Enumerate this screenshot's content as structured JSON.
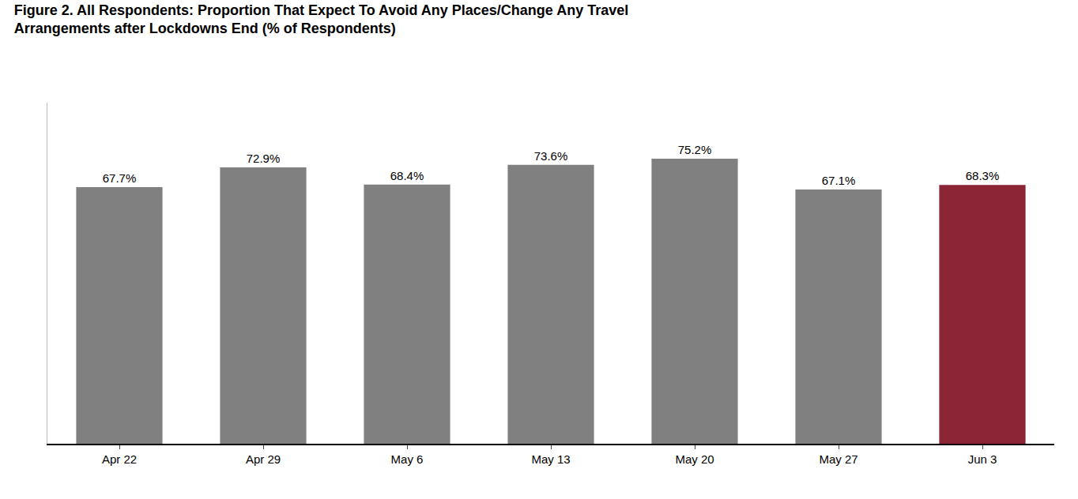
{
  "chart_data": {
    "type": "bar",
    "title": "Figure 2. All Respondents: Proportion That Expect To Avoid Any Places/Change Any Travel\nArrangements after Lockdowns End (% of Respondents)",
    "categories": [
      "Apr 22",
      "Apr 29",
      "May 6",
      "May 13",
      "May 20",
      "May 27",
      "Jun 3"
    ],
    "values": [
      67.7,
      72.9,
      68.4,
      73.6,
      75.2,
      67.1,
      68.3
    ],
    "value_labels": [
      "67.7%",
      "72.9%",
      "68.4%",
      "73.6%",
      "75.2%",
      "67.1%",
      "68.3%"
    ],
    "colors": [
      "#808080",
      "#808080",
      "#808080",
      "#808080",
      "#808080",
      "#808080",
      "#8B2535"
    ],
    "ylim": [
      0,
      90
    ],
    "data_labels": true,
    "tick_labels": "x",
    "grid": false
  }
}
